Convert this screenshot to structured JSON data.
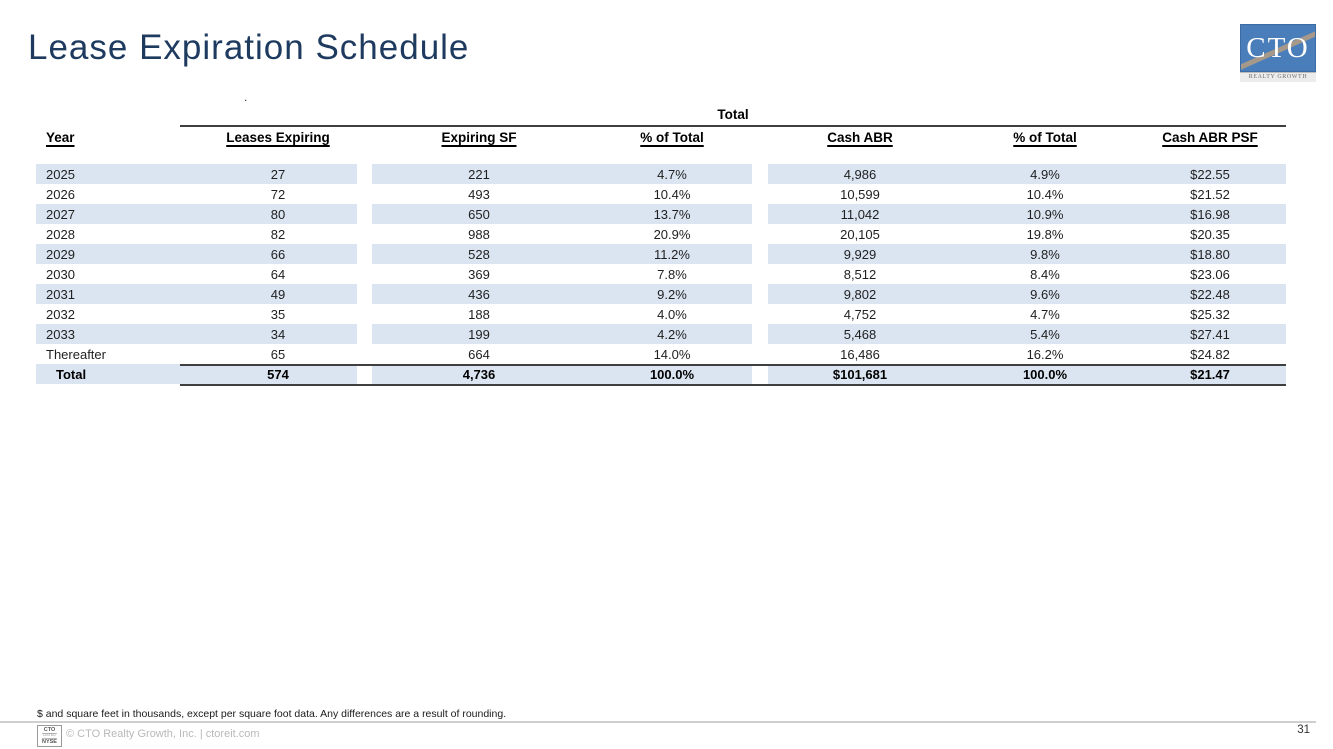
{
  "slide": {
    "title": "Lease Expiration Schedule",
    "stray_mark": ".",
    "page_number": "31",
    "footnote": "$ and square feet in thousands, except per square foot data. Any differences are a result of rounding.",
    "copyright": "© CTO Realty Growth, Inc. | ctoreit.com",
    "nyse_badge": {
      "line1": "CTO",
      "line2": "LISTED",
      "line3": "NYSE"
    },
    "logo": {
      "monogram": "CTO",
      "tagline": "REALTY GROWTH"
    }
  },
  "colors": {
    "title_navy": "#1e3a5f",
    "row_stripe": "#dbe5f1",
    "table_rule": "#3f3f3f",
    "logo_blue": "#4a7ebb",
    "logo_stripe_tan": "#a6998a",
    "footer_gray": "#b9b9b9"
  },
  "table": {
    "group_header": "Total",
    "columns": [
      "Year",
      "Leases Expiring",
      "Expiring SF",
      "% of Total",
      "Cash ABR",
      "% of Total",
      "Cash ABR PSF"
    ],
    "column_keys": [
      "year",
      "leases-expiring",
      "expiring-sf",
      "pct-of-total-sf",
      "cash-abr",
      "pct-of-total-abr",
      "cash-abr-psf"
    ],
    "rows": [
      [
        "2025",
        "27",
        "221",
        "4.7%",
        "4,986",
        "4.9%",
        "$22.55"
      ],
      [
        "2026",
        "72",
        "493",
        "10.4%",
        "10,599",
        "10.4%",
        "$21.52"
      ],
      [
        "2027",
        "80",
        "650",
        "13.7%",
        "11,042",
        "10.9%",
        "$16.98"
      ],
      [
        "2028",
        "82",
        "988",
        "20.9%",
        "20,105",
        "19.8%",
        "$20.35"
      ],
      [
        "2029",
        "66",
        "528",
        "11.2%",
        "9,929",
        "9.8%",
        "$18.80"
      ],
      [
        "2030",
        "64",
        "369",
        "7.8%",
        "8,512",
        "8.4%",
        "$23.06"
      ],
      [
        "2031",
        "49",
        "436",
        "9.2%",
        "9,802",
        "9.6%",
        "$22.48"
      ],
      [
        "2032",
        "35",
        "188",
        "4.0%",
        "4,752",
        "4.7%",
        "$25.32"
      ],
      [
        "2033",
        "34",
        "199",
        "4.2%",
        "5,468",
        "5.4%",
        "$27.41"
      ],
      [
        "Thereafter",
        "65",
        "664",
        "14.0%",
        "16,486",
        "16.2%",
        "$24.82"
      ]
    ],
    "total_row": [
      "Total",
      "574",
      "4,736",
      "100.0%",
      "$101,681",
      "100.0%",
      "$21.47"
    ]
  }
}
